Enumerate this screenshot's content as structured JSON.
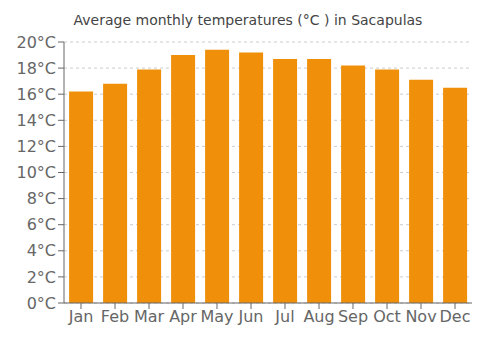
{
  "chart_data": {
    "type": "bar",
    "title": "Average monthly temperatures (°C ) in Sacapulas",
    "categories": [
      "Jan",
      "Feb",
      "Mar",
      "Apr",
      "May",
      "Jun",
      "Jul",
      "Aug",
      "Sep",
      "Oct",
      "Nov",
      "Dec"
    ],
    "values": [
      16.2,
      16.8,
      17.9,
      19.0,
      19.4,
      19.2,
      18.7,
      18.7,
      18.2,
      17.9,
      17.1,
      16.5
    ],
    "color": "#F0900A",
    "ylim": [
      0,
      20
    ],
    "yticks": [
      {
        "value": 0,
        "label": "0°C"
      },
      {
        "value": 2,
        "label": "2°C"
      },
      {
        "value": 4,
        "label": "4°C"
      },
      {
        "value": 6,
        "label": "6°C"
      },
      {
        "value": 8,
        "label": "8°C"
      },
      {
        "value": 10,
        "label": "10°C"
      },
      {
        "value": 12,
        "label": "12°C"
      },
      {
        "value": 14,
        "label": "14°C"
      },
      {
        "value": 16,
        "label": "16°C"
      },
      {
        "value": 18,
        "label": "18°C"
      },
      {
        "value": 20,
        "label": "20°C"
      }
    ],
    "grid": true
  }
}
